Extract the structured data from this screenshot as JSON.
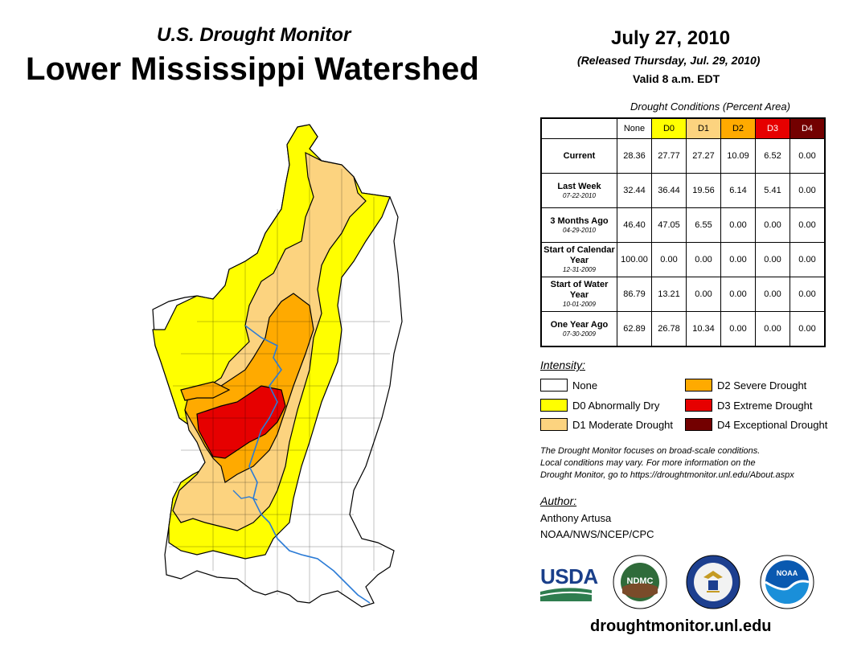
{
  "header": {
    "subtitle": "U.S. Drought Monitor",
    "title": "Lower Mississippi Watershed",
    "date": "July 27, 2010",
    "released": "(Released Thursday, Jul. 29, 2010)",
    "valid": "Valid 8 a.m. EDT"
  },
  "table": {
    "caption": "Drought Conditions (Percent Area)",
    "columns": [
      "None",
      "D0",
      "D1",
      "D2",
      "D3",
      "D4"
    ],
    "rows": [
      {
        "label": "Current",
        "sub": "",
        "values": [
          "28.36",
          "27.77",
          "27.27",
          "10.09",
          "6.52",
          "0.00"
        ]
      },
      {
        "label": "Last Week",
        "sub": "07-22-2010",
        "values": [
          "32.44",
          "36.44",
          "19.56",
          "6.14",
          "5.41",
          "0.00"
        ]
      },
      {
        "label": "3 Months Ago",
        "sub": "04-29-2010",
        "values": [
          "46.40",
          "47.05",
          "6.55",
          "0.00",
          "0.00",
          "0.00"
        ]
      },
      {
        "label": "Start of Calendar Year",
        "sub": "12-31-2009",
        "values": [
          "100.00",
          "0.00",
          "0.00",
          "0.00",
          "0.00",
          "0.00"
        ]
      },
      {
        "label": "Start of Water Year",
        "sub": "10-01-2009",
        "values": [
          "86.79",
          "13.21",
          "0.00",
          "0.00",
          "0.00",
          "0.00"
        ]
      },
      {
        "label": "One Year Ago",
        "sub": "07-30-2009",
        "values": [
          "62.89",
          "26.78",
          "10.34",
          "0.00",
          "0.00",
          "0.00"
        ]
      }
    ]
  },
  "legend": {
    "title": "Intensity:",
    "items": [
      {
        "label": "None",
        "color": "#ffffff"
      },
      {
        "label": "D0 Abnormally Dry",
        "color": "#ffff00"
      },
      {
        "label": "D1 Moderate Drought",
        "color": "#fcd37f"
      },
      {
        "label": "D2 Severe Drought",
        "color": "#ffaa00"
      },
      {
        "label": "D3 Extreme Drought",
        "color": "#e60000"
      },
      {
        "label": "D4 Exceptional Drought",
        "color": "#730000"
      }
    ]
  },
  "header_colors": [
    "#ffffff",
    "#ffff00",
    "#fcd37f",
    "#ffaa00",
    "#e60000",
    "#730000"
  ],
  "note": {
    "line1": "The Drought Monitor focuses on broad-scale conditions.",
    "line2": "Local conditions may vary. For more information on the",
    "line3": "Drought Monitor, go to https://droughtmonitor.unl.edu/About.aspx"
  },
  "author": {
    "title": "Author:",
    "name": "Anthony Artusa",
    "org": "NOAA/NWS/NCEP/CPC"
  },
  "logos": {
    "usda": "USDA",
    "ndmc": "NDMC",
    "noaa": "NOAA"
  },
  "site": "droughtmonitor.unl.edu"
}
